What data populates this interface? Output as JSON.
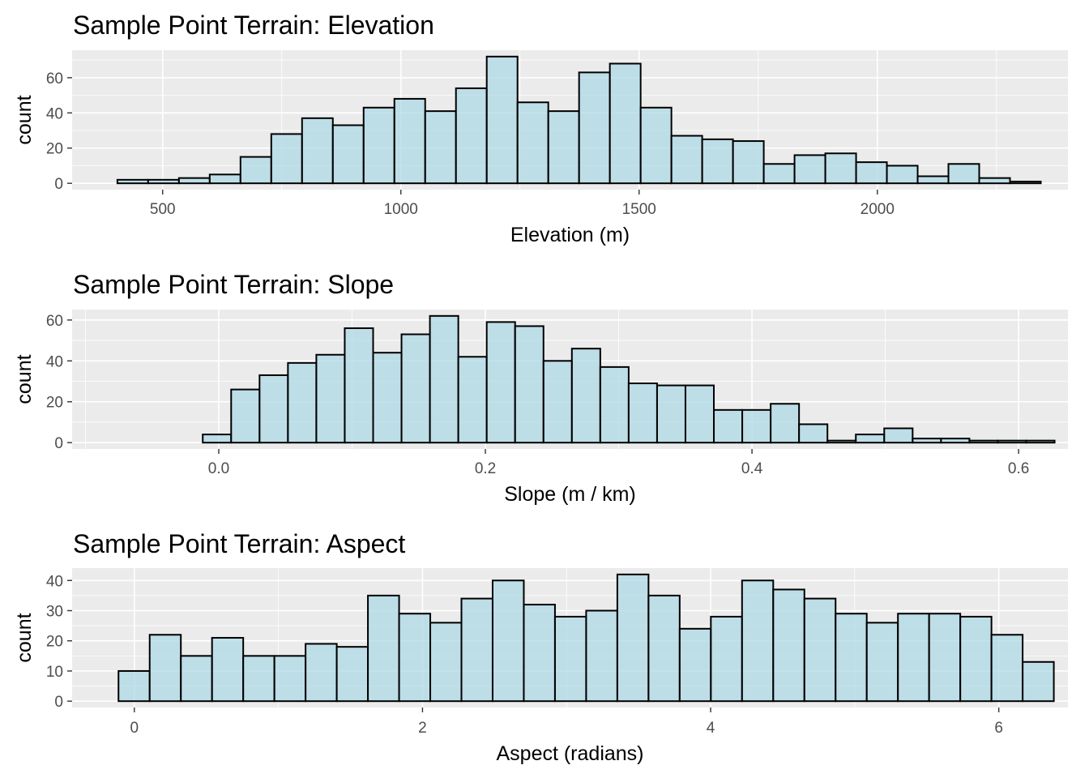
{
  "chart_data": [
    {
      "type": "bar",
      "title": "Sample Point Terrain: Elevation",
      "xlabel": "Elevation (m)",
      "ylabel": "count",
      "xlim": [
        310,
        2400
      ],
      "ylim": [
        -3.6,
        75.6
      ],
      "xticks": [
        500,
        1000,
        1500,
        2000
      ],
      "xtick_labels": [
        "500",
        "1000",
        "1500",
        "2000"
      ],
      "yticks": [
        0,
        20,
        40,
        60
      ],
      "ytick_labels": [
        "0",
        "20",
        "40",
        "60"
      ],
      "bin_start": 405,
      "bin_width": 64.6,
      "counts": [
        2,
        2,
        3,
        5,
        15,
        28,
        37,
        33,
        43,
        48,
        41,
        54,
        72,
        46,
        41,
        63,
        68,
        43,
        27,
        25,
        24,
        11,
        16,
        17,
        12,
        10,
        4,
        11,
        3,
        1
      ],
      "bar_fill": "#add8e6",
      "bar_outline": "#000000",
      "panel_background": "#ebebeb",
      "grid": true
    },
    {
      "type": "bar",
      "title": "Sample Point Terrain: Slope",
      "xlabel": "Slope (m / km)",
      "ylabel": "count",
      "xlim": [
        -0.11,
        0.637
      ],
      "ylim": [
        -3.1,
        65.1
      ],
      "xticks": [
        0.0,
        0.2,
        0.4,
        0.6
      ],
      "xtick_labels": [
        "0.0",
        "0.2",
        "0.4",
        "0.6"
      ],
      "yticks": [
        0,
        20,
        40,
        60
      ],
      "ytick_labels": [
        "0",
        "20",
        "40",
        "60"
      ],
      "bin_start": -0.012,
      "bin_width": 0.0213,
      "counts": [
        4,
        26,
        33,
        39,
        43,
        56,
        44,
        53,
        62,
        42,
        59,
        57,
        40,
        46,
        37,
        29,
        28,
        28,
        16,
        16,
        19,
        9,
        1,
        4,
        7,
        2,
        2,
        1,
        1,
        1
      ],
      "bar_fill": "#add8e6",
      "bar_outline": "#000000",
      "panel_background": "#ebebeb",
      "grid": true
    },
    {
      "type": "bar",
      "title": "Sample Point Terrain: Aspect",
      "xlabel": "Aspect (radians)",
      "ylabel": "count",
      "xlim": [
        -0.432,
        6.48
      ],
      "ylim": [
        -2.1,
        44.1
      ],
      "xticks": [
        0,
        2,
        4,
        6
      ],
      "xtick_labels": [
        "0",
        "2",
        "4",
        "6"
      ],
      "yticks": [
        0,
        10,
        20,
        30,
        40
      ],
      "ytick_labels": [
        "0",
        "10",
        "20",
        "30",
        "40"
      ],
      "bin_start": -0.11,
      "bin_width": 0.2164,
      "counts": [
        10,
        22,
        15,
        21,
        15,
        15,
        19,
        18,
        35,
        29,
        26,
        34,
        40,
        32,
        28,
        30,
        42,
        35,
        24,
        28,
        40,
        37,
        34,
        29,
        26,
        29,
        29,
        28,
        22,
        13
      ],
      "bar_fill": "#add8e6",
      "bar_outline": "#000000",
      "panel_background": "#ebebeb",
      "grid": true
    }
  ]
}
